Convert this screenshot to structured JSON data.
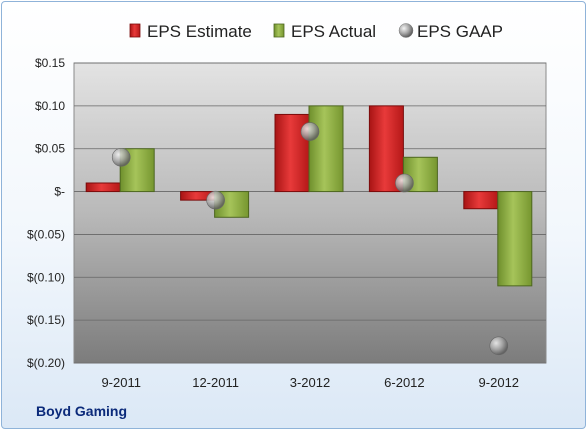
{
  "company": "Boyd Gaming",
  "chart_data": {
    "type": "bar",
    "categories": [
      "9-2011",
      "12-2011",
      "3-2012",
      "6-2012",
      "9-2012"
    ],
    "series": [
      {
        "name": "EPS Estimate",
        "values": [
          0.01,
          -0.01,
          0.09,
          0.1,
          -0.02
        ],
        "color": "#cc1f1f"
      },
      {
        "name": "EPS Actual",
        "values": [
          0.05,
          -0.03,
          0.1,
          0.04,
          -0.11
        ],
        "color": "#86a83c"
      },
      {
        "name": "EPS GAAP",
        "type": "scatter",
        "values": [
          0.04,
          -0.01,
          0.07,
          0.01,
          -0.18
        ],
        "color": "#9aa3ad"
      }
    ],
    "y_ticks": [
      "$0.15",
      "$0.10",
      "$0.05",
      "$-",
      "$(0.05)",
      "$(0.10)",
      "$(0.15)",
      "$(0.20)"
    ],
    "y_tick_values": [
      0.15,
      0.1,
      0.05,
      0,
      -0.05,
      -0.1,
      -0.15,
      -0.2
    ],
    "ylim": [
      -0.2,
      0.15
    ],
    "grid": true,
    "legend": "top"
  }
}
